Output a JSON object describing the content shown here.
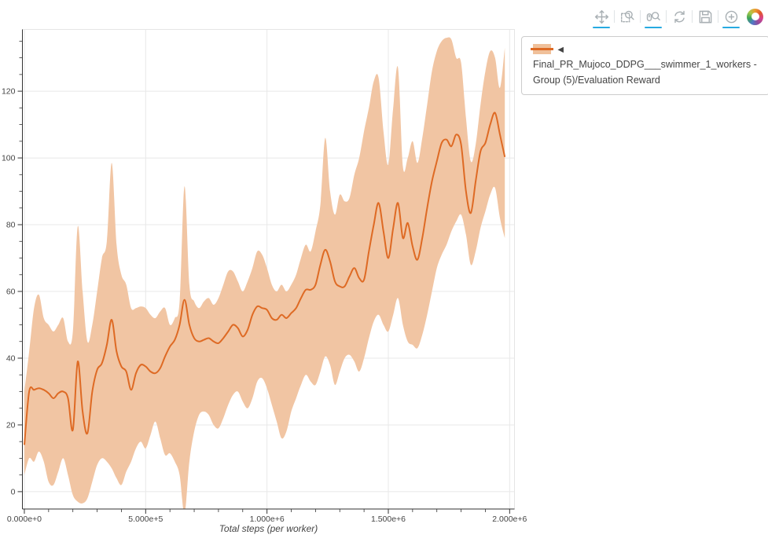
{
  "toolbar": {
    "underline_color": "#26aae1",
    "icon_color": "#a9b0b4",
    "tools": [
      {
        "name": "pan",
        "active": true
      },
      {
        "name": "box-zoom",
        "active": false
      },
      {
        "name": "wheel-zoom",
        "active": true
      },
      {
        "name": "reset",
        "active": false
      },
      {
        "name": "save",
        "active": false
      },
      {
        "name": "hover",
        "active": true
      }
    ],
    "logo": "bokeh-logo"
  },
  "legend": {
    "label": "◄ Final_PR_Mujoco_DDPG___swimmer_1_workers - Group (5)/Evaluation Reward",
    "band_color": "#f0c09a",
    "line_color": "#de6a24"
  },
  "chart_data": {
    "type": "line",
    "title": "",
    "xlabel": "Total steps (per worker)",
    "ylabel": "",
    "legend_position": "right",
    "grid": true,
    "line_color": "#de6a24",
    "band_color": "#f1c5a3",
    "grid_color": "#e8e8e8",
    "frame_color": "#e5e5e5",
    "axis_color": "#333333",
    "tick_label_color": "#444444",
    "x_range": [
      -8000,
      2020000
    ],
    "y_range": [
      -5.2,
      138.5
    ],
    "x_tick_values": [
      0,
      500000,
      1000000,
      1500000,
      2000000
    ],
    "x_tick_labels": [
      "0.000e+0",
      "5.000e+5",
      "1.000e+6",
      "1.500e+6",
      "2.000e+6"
    ],
    "x_minor_step": 100000,
    "y_tick_values": [
      0,
      20,
      40,
      60,
      80,
      100,
      120
    ],
    "y_minor_step": 5,
    "series_name": "Final_PR_Mujoco_DDPG___swimmer_1_workers - Group (5)/Evaluation Reward",
    "x": [
      0,
      20000,
      40000,
      60000,
      80000,
      100000,
      120000,
      140000,
      160000,
      180000,
      200000,
      220000,
      240000,
      260000,
      280000,
      300000,
      320000,
      340000,
      360000,
      380000,
      400000,
      420000,
      440000,
      460000,
      480000,
      500000,
      520000,
      540000,
      560000,
      580000,
      600000,
      620000,
      640000,
      660000,
      680000,
      700000,
      720000,
      740000,
      760000,
      780000,
      800000,
      820000,
      840000,
      860000,
      880000,
      900000,
      920000,
      940000,
      960000,
      980000,
      1000000,
      1020000,
      1040000,
      1060000,
      1080000,
      1100000,
      1120000,
      1140000,
      1160000,
      1180000,
      1200000,
      1220000,
      1240000,
      1260000,
      1280000,
      1300000,
      1320000,
      1340000,
      1360000,
      1380000,
      1400000,
      1420000,
      1440000,
      1460000,
      1480000,
      1500000,
      1520000,
      1540000,
      1560000,
      1580000,
      1600000,
      1620000,
      1640000,
      1660000,
      1680000,
      1700000,
      1720000,
      1740000,
      1760000,
      1780000,
      1800000,
      1820000,
      1840000,
      1860000,
      1880000,
      1900000,
      1920000,
      1940000,
      1960000,
      1980000
    ],
    "mean": [
      14,
      30,
      30.5,
      31,
      30.5,
      29.5,
      28,
      29.5,
      30,
      28,
      18.5,
      39,
      24,
      17.5,
      30,
      36.5,
      38.5,
      44,
      51.5,
      42,
      37.5,
      36,
      30.5,
      35.5,
      38,
      37.5,
      36,
      35.5,
      37,
      40.5,
      43.5,
      45.5,
      50,
      57.5,
      50,
      46,
      45,
      45.5,
      46,
      45,
      44.5,
      46,
      48,
      50,
      49,
      46.5,
      48.5,
      53,
      55.5,
      55,
      54.5,
      52,
      51.5,
      53,
      52,
      53.5,
      55,
      58,
      60.5,
      60.5,
      62,
      68,
      72.5,
      69,
      63,
      61.5,
      61.5,
      64.5,
      67,
      64,
      63.5,
      72,
      80,
      86.5,
      78,
      70,
      79,
      86.5,
      76,
      80.5,
      73.5,
      69.5,
      76,
      85,
      93,
      99,
      104.5,
      105.5,
      103.5,
      107,
      104,
      90,
      83.5,
      93,
      102,
      104.5,
      110,
      113.5,
      107,
      100.3
    ],
    "upper": [
      30,
      42,
      55,
      59,
      52,
      50,
      48,
      50,
      52,
      45,
      48,
      79.5,
      60,
      45,
      50,
      60,
      70,
      75,
      98.5,
      74,
      65,
      62,
      55,
      55,
      55.5,
      55,
      53,
      52,
      54,
      55,
      50,
      52,
      57,
      91.5,
      62,
      57,
      55,
      57,
      58,
      56,
      58,
      62,
      66,
      66,
      63,
      60,
      63,
      67,
      72,
      71,
      67,
      62,
      60,
      62,
      60,
      62,
      65,
      70,
      74,
      72,
      78,
      86,
      106,
      90,
      83,
      89,
      87,
      88,
      95,
      100,
      108,
      115,
      123,
      124,
      108,
      98,
      115,
      127,
      97.5,
      100,
      105,
      98.5,
      106,
      116,
      126,
      132,
      135,
      136,
      135.5,
      130,
      128.5,
      112,
      99,
      104,
      116,
      126,
      132,
      130,
      121,
      133
    ],
    "lower": [
      5,
      10,
      9,
      12,
      9,
      3,
      2,
      6,
      10,
      5,
      -1,
      -3,
      -3.5,
      -2,
      3,
      8,
      10,
      9,
      7,
      4,
      2,
      6,
      9,
      13,
      15,
      13,
      17,
      21,
      16,
      11,
      11.5,
      9,
      5,
      -6.5,
      9,
      18,
      23,
      24,
      23,
      20,
      19,
      22,
      26,
      29,
      30,
      27,
      25,
      28,
      33,
      34,
      31,
      26,
      21,
      16,
      18,
      24,
      28,
      32,
      35,
      33,
      32,
      36,
      40.5,
      38,
      32,
      36,
      40,
      41,
      39,
      36,
      40,
      46,
      51,
      53,
      50,
      48,
      53,
      58,
      50,
      45,
      44,
      43,
      47,
      53,
      60,
      67,
      71,
      74,
      78,
      81,
      83,
      77,
      68,
      72,
      79,
      84,
      89,
      91,
      82,
      76
    ]
  }
}
